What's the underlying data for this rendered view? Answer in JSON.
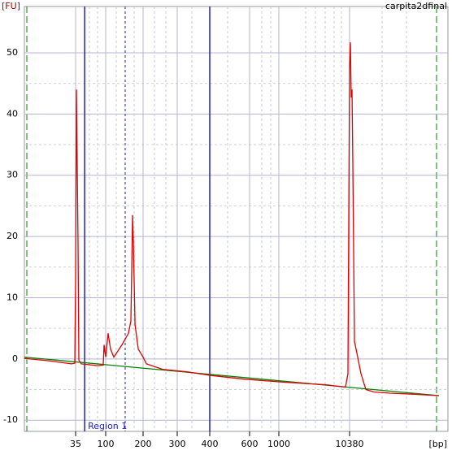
{
  "chart_data": {
    "type": "line",
    "title": "carpita2dfinal",
    "ylabel": "[FU]",
    "xlabel": "[bp]",
    "xscale": "log",
    "xlim": [
      5.8,
      200000
    ],
    "xticks": [
      35,
      100,
      200,
      300,
      400,
      600,
      1000,
      10380
    ],
    "ylim": [
      -11.7,
      57.3
    ],
    "yticks": [
      -10,
      0,
      10,
      20,
      30,
      40,
      50
    ],
    "grid": true,
    "region": {
      "label": "Region 1",
      "start": 48,
      "end": 400,
      "color": "#1f1fc8"
    },
    "markers": [
      143.5
    ],
    "series": [
      {
        "color": "#e00000",
        "x": [
          5.8,
          13.7,
          30.3,
          34.0,
          35,
          36.0,
          38.1,
          39.2,
          42.7,
          75.3,
          91.9,
          94.5,
          100,
          104.6,
          109.4,
          116.2,
          135.1,
          152.5,
          159.6,
          164.7,
          167.2,
          172.2,
          182.9,
          200,
          208,
          252,
          327,
          406,
          566,
          1208,
          4634,
          9080,
          9840,
          10380,
          10660,
          10950,
          11240,
          11550,
          12190,
          13580,
          15120,
          17770,
          23250,
          39800,
          68200,
          200000
        ],
        "values": [
          0.1,
          -0.3,
          -0.8,
          -0.7,
          13.5,
          44,
          18.8,
          -0.2,
          -0.8,
          -1.1,
          -1.0,
          2.3,
          0.3,
          4.2,
          1.6,
          0.3,
          2.3,
          4.2,
          6.2,
          23.5,
          18.8,
          5.6,
          1.6,
          0.3,
          -0.8,
          -1.7,
          -2.1,
          -2.7,
          -3.3,
          -3.8,
          -4.2,
          -4.6,
          -2.4,
          48,
          51.7,
          42.7,
          44,
          32.1,
          2.9,
          0.3,
          -2.4,
          -5.0,
          -5.4,
          -5.6,
          -5.7,
          -6.0
        ]
      },
      {
        "color": "#008000",
        "x": [
          5.8,
          200000
        ],
        "values": [
          0.3,
          -6.0
        ]
      }
    ]
  }
}
